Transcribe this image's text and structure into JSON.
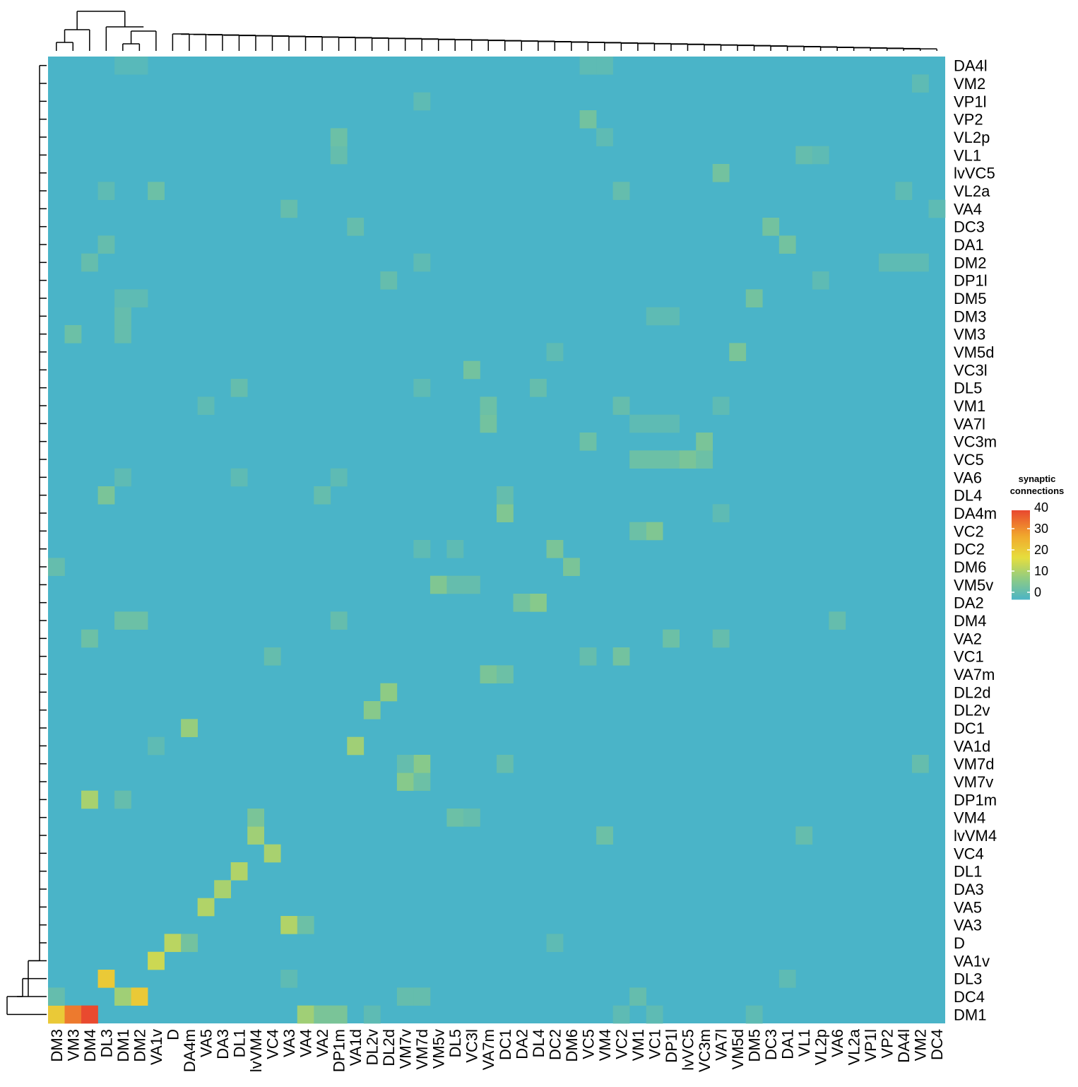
{
  "chart_data": {
    "type": "heatmap",
    "title": "",
    "xlabel": "",
    "ylabel": "",
    "column_labels": [
      "DM3",
      "VM3",
      "DM4",
      "DL3",
      "DM1",
      "DM2",
      "VA1v",
      "D",
      "DA4m",
      "VA5",
      "DA3",
      "DL1",
      "lvVM4",
      "VC4",
      "VA3",
      "VA4",
      "VA2",
      "DP1m",
      "VA1d",
      "DL2v",
      "DL2d",
      "VM7v",
      "VM7d",
      "VM5v",
      "DL5",
      "VC3l",
      "VA7m",
      "DC1",
      "DA2",
      "DL4",
      "DC2",
      "DM6",
      "VC5",
      "VM4",
      "VC2",
      "VM1",
      "VC1",
      "DP1l",
      "lvVC5",
      "VC3m",
      "VA7l",
      "VM5d",
      "DM5",
      "DC3",
      "DA1",
      "VL1",
      "VL2p",
      "VA6",
      "VL2a",
      "VP1l",
      "VP2",
      "DA4l",
      "VM2",
      "DC4"
    ],
    "row_labels": [
      "DA4l",
      "VM2",
      "VP1l",
      "VP2",
      "VL2p",
      "VL1",
      "lvVC5",
      "VL2a",
      "VA4",
      "DC3",
      "DA1",
      "DM2",
      "DP1l",
      "DM5",
      "DM3",
      "VM3",
      "VM5d",
      "VC3l",
      "DL5",
      "VM1",
      "VA7l",
      "VC3m",
      "VC5",
      "VA6",
      "DL4",
      "DA4m",
      "VC2",
      "DC2",
      "DM6",
      "VM5v",
      "DA2",
      "DM4",
      "VA2",
      "VC1",
      "VA7m",
      "DL2d",
      "DL2v",
      "DC1",
      "VA1d",
      "VM7d",
      "VM7v",
      "DP1m",
      "VM4",
      "lvVM4",
      "VC4",
      "DL1",
      "DA3",
      "VA5",
      "VA3",
      "D",
      "VA1v",
      "DL3",
      "DC4",
      "DM1"
    ],
    "legend": {
      "title": "synaptic\nconnections",
      "position": "right",
      "range": [
        0,
        42
      ],
      "ticks": [
        0,
        10,
        20,
        30,
        40
      ],
      "colors": [
        "#4ab4c8",
        "#8ecb84",
        "#e6de3e",
        "#f1a92d",
        "#e94a2f"
      ]
    },
    "row_dendrogram": true,
    "column_dendrogram": true,
    "cells": [
      {
        "row": "DM1",
        "col": "DM3",
        "value": 24
      },
      {
        "row": "DM1",
        "col": "VM3",
        "value": 36
      },
      {
        "row": "DM1",
        "col": "DM4",
        "value": 42
      },
      {
        "row": "DM1",
        "col": "VA4",
        "value": 12
      },
      {
        "row": "DM1",
        "col": "VA2",
        "value": 7
      },
      {
        "row": "DM1",
        "col": "DP1m",
        "value": 7
      },
      {
        "row": "DM1",
        "col": "DL2v",
        "value": 3
      },
      {
        "row": "DM1",
        "col": "VC2",
        "value": 3
      },
      {
        "row": "DM1",
        "col": "VC1",
        "value": 3
      },
      {
        "row": "DM1",
        "col": "DM5",
        "value": 3
      },
      {
        "row": "DC4",
        "col": "DM1",
        "value": 12
      },
      {
        "row": "DC4",
        "col": "DM2",
        "value": 24
      },
      {
        "row": "DC4",
        "col": "DM3",
        "value": 4
      },
      {
        "row": "DC4",
        "col": "VM7v",
        "value": 4
      },
      {
        "row": "DC4",
        "col": "VM7d",
        "value": 4
      },
      {
        "row": "DC4",
        "col": "VM1",
        "value": 4
      },
      {
        "row": "DL3",
        "col": "DL3",
        "value": 24
      },
      {
        "row": "DL3",
        "col": "DA1",
        "value": 3
      },
      {
        "row": "DL3",
        "col": "VA3",
        "value": 3
      },
      {
        "row": "VA1v",
        "col": "VA1v",
        "value": 17
      },
      {
        "row": "D",
        "col": "D",
        "value": 15
      },
      {
        "row": "D",
        "col": "DA4m",
        "value": 6
      },
      {
        "row": "D",
        "col": "DC2",
        "value": 3
      },
      {
        "row": "VA3",
        "col": "VA3",
        "value": 14
      },
      {
        "row": "VA3",
        "col": "VA4",
        "value": 5
      },
      {
        "row": "VA5",
        "col": "VA5",
        "value": 14
      },
      {
        "row": "DA3",
        "col": "DA3",
        "value": 13
      },
      {
        "row": "DL1",
        "col": "DL1",
        "value": 14
      },
      {
        "row": "VC4",
        "col": "VC4",
        "value": 13
      },
      {
        "row": "lvVM4",
        "col": "lvVM4",
        "value": 12
      },
      {
        "row": "lvVM4",
        "col": "VM4",
        "value": 5
      },
      {
        "row": "lvVM4",
        "col": "VL1",
        "value": 4
      },
      {
        "row": "VM4",
        "col": "lvVM4",
        "value": 7
      },
      {
        "row": "VM4",
        "col": "DL5",
        "value": 5
      },
      {
        "row": "VM4",
        "col": "VC3l",
        "value": 4
      },
      {
        "row": "DP1m",
        "col": "DM4",
        "value": 13
      },
      {
        "row": "DP1m",
        "col": "DM1",
        "value": 4
      },
      {
        "row": "VM7v",
        "col": "VM7v",
        "value": 9
      },
      {
        "row": "VM7v",
        "col": "VM7d",
        "value": 5
      },
      {
        "row": "VM7d",
        "col": "VM7d",
        "value": 9
      },
      {
        "row": "VM7d",
        "col": "VM7v",
        "value": 4
      },
      {
        "row": "VM7d",
        "col": "DC1",
        "value": 4
      },
      {
        "row": "VM7d",
        "col": "VM2",
        "value": 4
      },
      {
        "row": "VA1d",
        "col": "VA1d",
        "value": 12
      },
      {
        "row": "VA1d",
        "col": "VA1v",
        "value": 3
      },
      {
        "row": "DC1",
        "col": "DA4m",
        "value": 11
      },
      {
        "row": "DL2v",
        "col": "DL2v",
        "value": 9
      },
      {
        "row": "DL2d",
        "col": "DL2d",
        "value": 10
      },
      {
        "row": "VA7m",
        "col": "VA7m",
        "value": 7
      },
      {
        "row": "VA7m",
        "col": "DC1",
        "value": 5
      },
      {
        "row": "VC1",
        "col": "VC2",
        "value": 6
      },
      {
        "row": "VC1",
        "col": "VC4",
        "value": 4
      },
      {
        "row": "VC1",
        "col": "VC5",
        "value": 4
      },
      {
        "row": "VA2",
        "col": "DM4",
        "value": 5
      },
      {
        "row": "VA2",
        "col": "DP1l",
        "value": 5
      },
      {
        "row": "VA2",
        "col": "VA7l",
        "value": 4
      },
      {
        "row": "DM4",
        "col": "DM1",
        "value": 5
      },
      {
        "row": "DM4",
        "col": "DM2",
        "value": 5
      },
      {
        "row": "DM4",
        "col": "DP1m",
        "value": 4
      },
      {
        "row": "DM4",
        "col": "VA6",
        "value": 4
      },
      {
        "row": "DA2",
        "col": "DL4",
        "value": 9
      },
      {
        "row": "DA2",
        "col": "DA2",
        "value": 6
      },
      {
        "row": "VM5v",
        "col": "VM5v",
        "value": 8
      },
      {
        "row": "VM5v",
        "col": "DL5",
        "value": 4
      },
      {
        "row": "VM5v",
        "col": "VC3l",
        "value": 4
      },
      {
        "row": "DM6",
        "col": "DM6",
        "value": 7
      },
      {
        "row": "DM6",
        "col": "DM3",
        "value": 4
      },
      {
        "row": "DC2",
        "col": "DC2",
        "value": 7
      },
      {
        "row": "DC2",
        "col": "VM7d",
        "value": 3
      },
      {
        "row": "DC2",
        "col": "DL5",
        "value": 3
      },
      {
        "row": "VC2",
        "col": "VC1",
        "value": 8
      },
      {
        "row": "VC2",
        "col": "VM1",
        "value": 5
      },
      {
        "row": "DA4m",
        "col": "DC1",
        "value": 8
      },
      {
        "row": "DA4m",
        "col": "VA7l",
        "value": 3
      },
      {
        "row": "DL4",
        "col": "DL3",
        "value": 7
      },
      {
        "row": "DL4",
        "col": "VA2",
        "value": 4
      },
      {
        "row": "DL4",
        "col": "DC1",
        "value": 4
      },
      {
        "row": "VA6",
        "col": "DM1",
        "value": 3
      },
      {
        "row": "VA6",
        "col": "DP1m",
        "value": 3
      },
      {
        "row": "VA6",
        "col": "DL1",
        "value": 3
      },
      {
        "row": "VC5",
        "col": "VM1",
        "value": 5
      },
      {
        "row": "VC5",
        "col": "VC1",
        "value": 5
      },
      {
        "row": "VC5",
        "col": "DP1l",
        "value": 5
      },
      {
        "row": "VC5",
        "col": "lvVC5",
        "value": 7
      },
      {
        "row": "VC5",
        "col": "VC3m",
        "value": 5
      },
      {
        "row": "VC3m",
        "col": "VC3m",
        "value": 7
      },
      {
        "row": "VC3m",
        "col": "VC5",
        "value": 5
      },
      {
        "row": "VA7l",
        "col": "VA7m",
        "value": 6
      },
      {
        "row": "VA7l",
        "col": "VM1",
        "value": 3
      },
      {
        "row": "VA7l",
        "col": "VC1",
        "value": 3
      },
      {
        "row": "VA7l",
        "col": "DP1l",
        "value": 3
      },
      {
        "row": "VM1",
        "col": "VA7m",
        "value": 5
      },
      {
        "row": "VM1",
        "col": "VC2",
        "value": 4
      },
      {
        "row": "VM1",
        "col": "VA5",
        "value": 3
      },
      {
        "row": "VM1",
        "col": "VA7l",
        "value": 3
      },
      {
        "row": "DL5",
        "col": "DL1",
        "value": 4
      },
      {
        "row": "DL5",
        "col": "VM7d",
        "value": 3
      },
      {
        "row": "DL5",
        "col": "DL4",
        "value": 4
      },
      {
        "row": "VC3l",
        "col": "VC3l",
        "value": 6
      },
      {
        "row": "VM5d",
        "col": "VM5d",
        "value": 7
      },
      {
        "row": "VM5d",
        "col": "DC2",
        "value": 3
      },
      {
        "row": "VM3",
        "col": "VM3",
        "value": 5
      },
      {
        "row": "VM3",
        "col": "DM1",
        "value": 4
      },
      {
        "row": "DM3",
        "col": "DM1",
        "value": 4
      },
      {
        "row": "DM3",
        "col": "VC1",
        "value": 3
      },
      {
        "row": "DM3",
        "col": "DP1l",
        "value": 3
      },
      {
        "row": "DM5",
        "col": "DM5",
        "value": 6
      },
      {
        "row": "DM5",
        "col": "DM1",
        "value": 3
      },
      {
        "row": "DM5",
        "col": "DM2",
        "value": 3
      },
      {
        "row": "DP1l",
        "col": "DL2d",
        "value": 4
      },
      {
        "row": "DP1l",
        "col": "VL2p",
        "value": 3
      },
      {
        "row": "DM2",
        "col": "DM4",
        "value": 4
      },
      {
        "row": "DM2",
        "col": "VM7d",
        "value": 3
      },
      {
        "row": "DM2",
        "col": "VP2",
        "value": 3
      },
      {
        "row": "DM2",
        "col": "DA4l",
        "value": 3
      },
      {
        "row": "DM2",
        "col": "VM2",
        "value": 3
      },
      {
        "row": "DA1",
        "col": "DA1",
        "value": 6
      },
      {
        "row": "DA1",
        "col": "DL3",
        "value": 4
      },
      {
        "row": "DC3",
        "col": "DC3",
        "value": 6
      },
      {
        "row": "DC3",
        "col": "VA1d",
        "value": 4
      },
      {
        "row": "VA4",
        "col": "VA3",
        "value": 4
      },
      {
        "row": "VA4",
        "col": "DC4",
        "value": 3
      },
      {
        "row": "VL2a",
        "col": "VA1v",
        "value": 5
      },
      {
        "row": "VL2a",
        "col": "VC2",
        "value": 4
      },
      {
        "row": "VL2a",
        "col": "DL3",
        "value": 3
      },
      {
        "row": "VL2a",
        "col": "DA4l",
        "value": 3
      },
      {
        "row": "lvVC5",
        "col": "VA7l",
        "value": 6
      },
      {
        "row": "VL1",
        "col": "VL1",
        "value": 4
      },
      {
        "row": "VL1",
        "col": "VL2p",
        "value": 3
      },
      {
        "row": "VL1",
        "col": "DP1m",
        "value": 4
      },
      {
        "row": "VL2p",
        "col": "DP1m",
        "value": 5
      },
      {
        "row": "VL2p",
        "col": "VM4",
        "value": 3
      },
      {
        "row": "VP2",
        "col": "VC5",
        "value": 6
      },
      {
        "row": "VP1l",
        "col": "VM7d",
        "value": 3
      },
      {
        "row": "VM2",
        "col": "VM2",
        "value": 3
      },
      {
        "row": "DA4l",
        "col": "VC5",
        "value": 3
      },
      {
        "row": "DA4l",
        "col": "VM4",
        "value": 3
      },
      {
        "row": "DA4l",
        "col": "DM1",
        "value": 2
      },
      {
        "row": "DA4l",
        "col": "DM2",
        "value": 2
      }
    ]
  }
}
